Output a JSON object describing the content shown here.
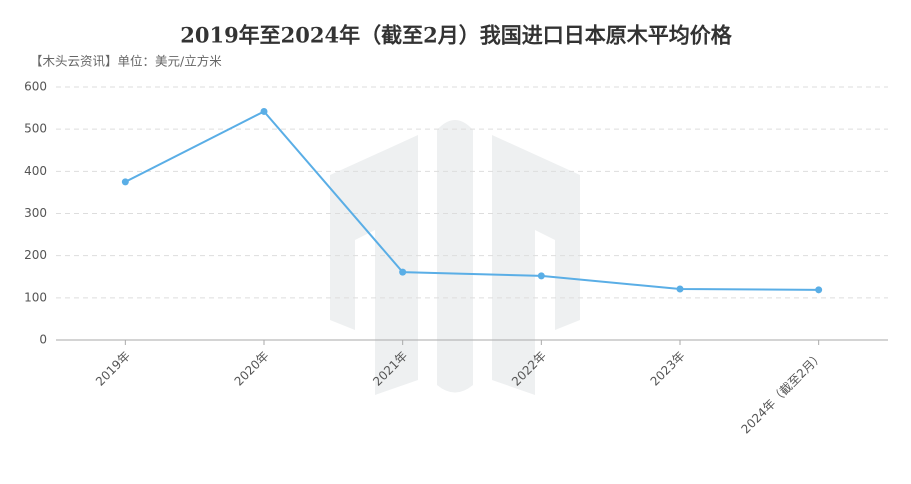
{
  "chart_data": {
    "type": "line",
    "title": "2019年至2024年（截至2月）我国进口日本原木平均价格",
    "subtitle": "【木头云资讯】单位：美元/立方米",
    "categories": [
      "2019年",
      "2020年",
      "2021年",
      "2022年",
      "2023年",
      "2024年（截至2月）"
    ],
    "series": [
      {
        "name": "平均价格",
        "color": "#5aaee6",
        "values": [
          375,
          542,
          161,
          152,
          121,
          119
        ]
      }
    ],
    "ylim": [
      0,
      600
    ],
    "yticks": [
      0,
      100,
      200,
      300,
      400,
      500,
      600
    ],
    "grid": true
  }
}
